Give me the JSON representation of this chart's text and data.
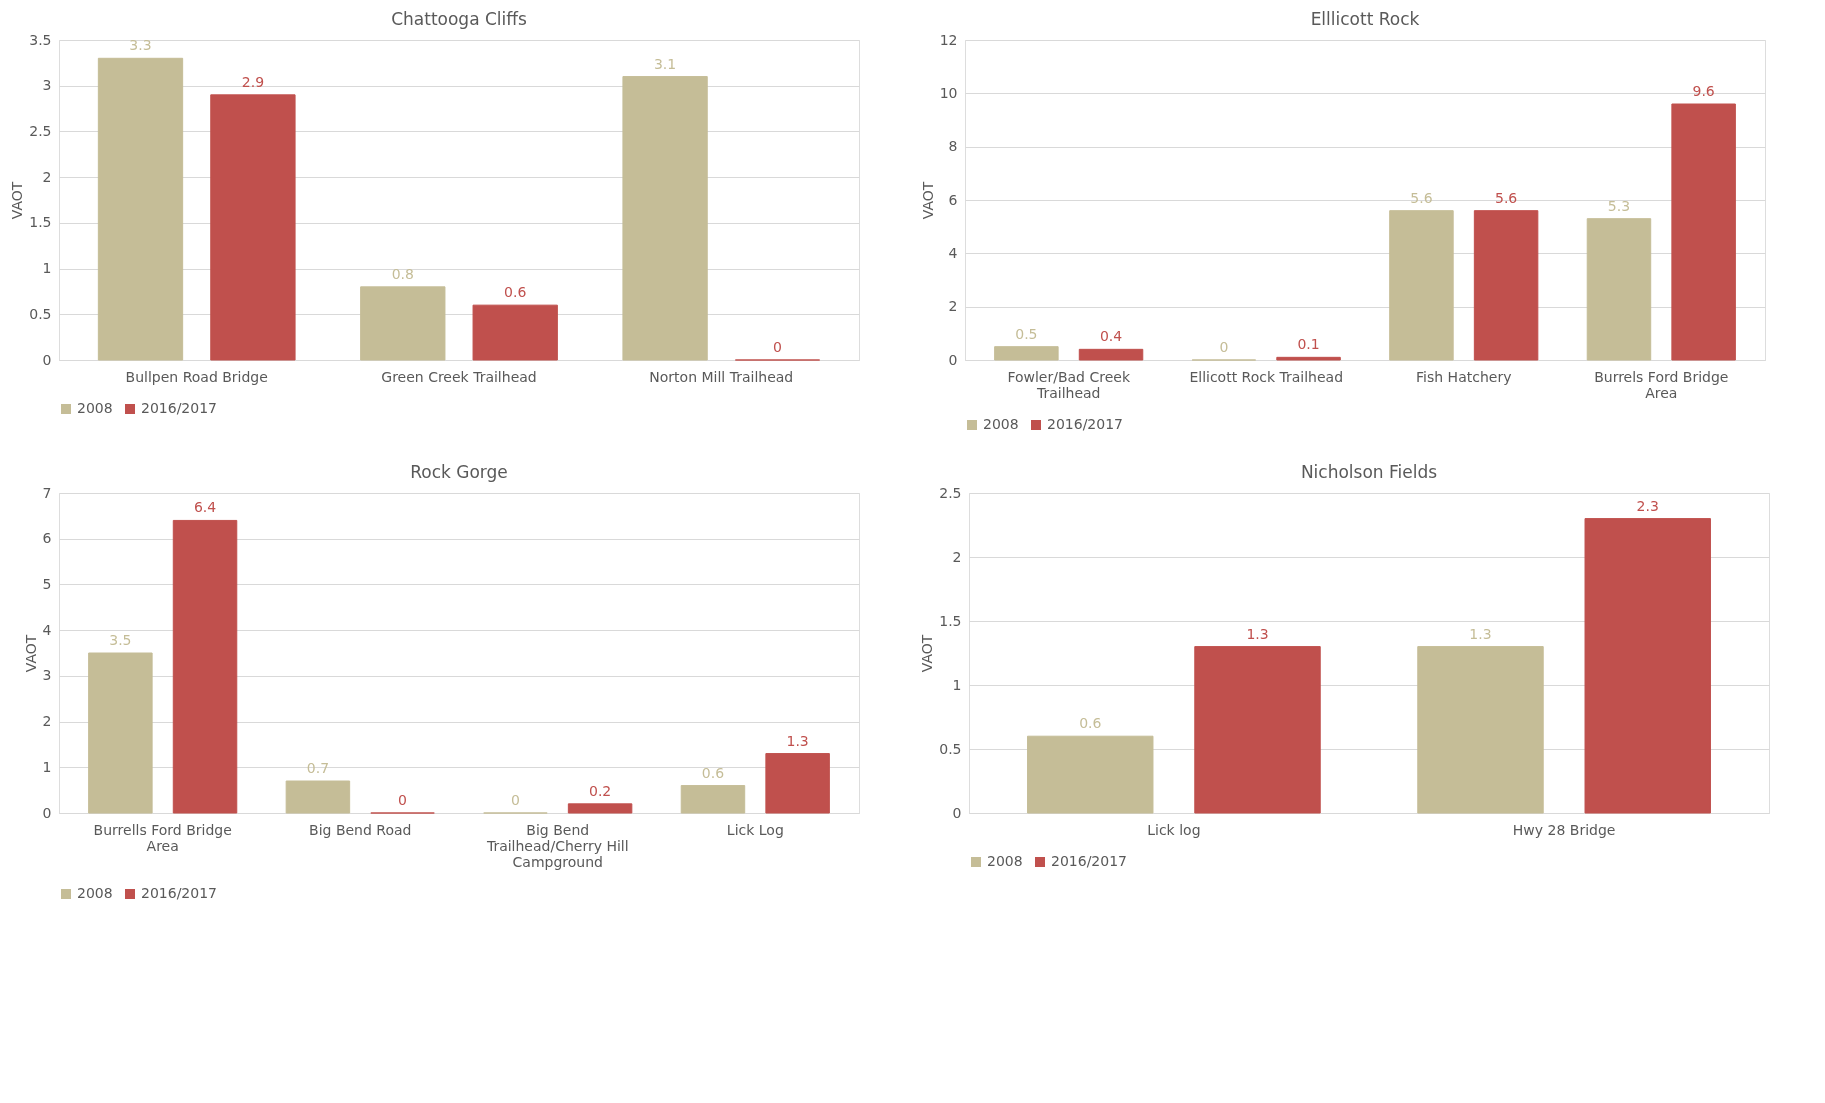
{
  "chart_data": [
    {
      "type": "bar",
      "title": "Chattooga Cliffs",
      "ylabel": "VAOT",
      "categories": [
        "Bullpen Road Bridge",
        "Green Creek Trailhead",
        "Norton Mill Trailhead"
      ],
      "series": [
        {
          "name": "2008",
          "color": "#c5bd97",
          "values": [
            3.3,
            0.8,
            3.1
          ]
        },
        {
          "name": "2016/2017",
          "color": "#c0504d",
          "values": [
            2.9,
            0.6,
            0
          ]
        }
      ],
      "ylim": [
        0,
        3.5
      ],
      "yticks": [
        0,
        0.5,
        1,
        1.5,
        2,
        2.5,
        3,
        3.5
      ],
      "grid": "y",
      "legend": "bottom",
      "data_labels": true
    },
    {
      "type": "bar",
      "title": "Elllicott Rock",
      "ylabel": "VAOT",
      "categories": [
        "Fowler/Bad Creek Trailhead",
        "Ellicott Rock Trailhead",
        "Fish Hatchery",
        "Burrels Ford Bridge Area"
      ],
      "series": [
        {
          "name": "2008",
          "color": "#c5bd97",
          "values": [
            0.5,
            0,
            5.6,
            5.3
          ]
        },
        {
          "name": "2016/2017",
          "color": "#c0504d",
          "values": [
            0.4,
            0.1,
            5.6,
            9.6
          ]
        }
      ],
      "ylim": [
        0,
        12
      ],
      "yticks": [
        0,
        2,
        4,
        6,
        8,
        10,
        12
      ],
      "grid": "y",
      "legend": "bottom",
      "data_labels": true
    },
    {
      "type": "bar",
      "title": "Rock Gorge",
      "ylabel": "VAOT",
      "categories": [
        "Burrells Ford Bridge Area",
        "Big Bend Road",
        "Big Bend Trailhead/Cherry Hill Campground",
        "Lick Log"
      ],
      "series": [
        {
          "name": "2008",
          "color": "#c5bd97",
          "values": [
            3.5,
            0.7,
            0,
            0.6
          ]
        },
        {
          "name": "2016/2017",
          "color": "#c0504d",
          "values": [
            6.4,
            0,
            0.2,
            1.3
          ]
        }
      ],
      "ylim": [
        0,
        7
      ],
      "yticks": [
        0,
        1,
        2,
        3,
        4,
        5,
        6,
        7
      ],
      "grid": "y",
      "legend": "bottom",
      "data_labels": true
    },
    {
      "type": "bar",
      "title": "Nicholson Fields",
      "ylabel": "VAOT",
      "categories": [
        "Lick log",
        "Hwy 28 Bridge"
      ],
      "series": [
        {
          "name": "2008",
          "color": "#c5bd97",
          "values": [
            0.6,
            1.3
          ]
        },
        {
          "name": "2016/2017",
          "color": "#c0504d",
          "values": [
            1.3,
            2.3
          ]
        }
      ],
      "ylim": [
        0,
        2.5
      ],
      "yticks": [
        0,
        0.5,
        1,
        1.5,
        2,
        2.5
      ],
      "grid": "y",
      "legend": "bottom",
      "data_labels": true
    }
  ]
}
